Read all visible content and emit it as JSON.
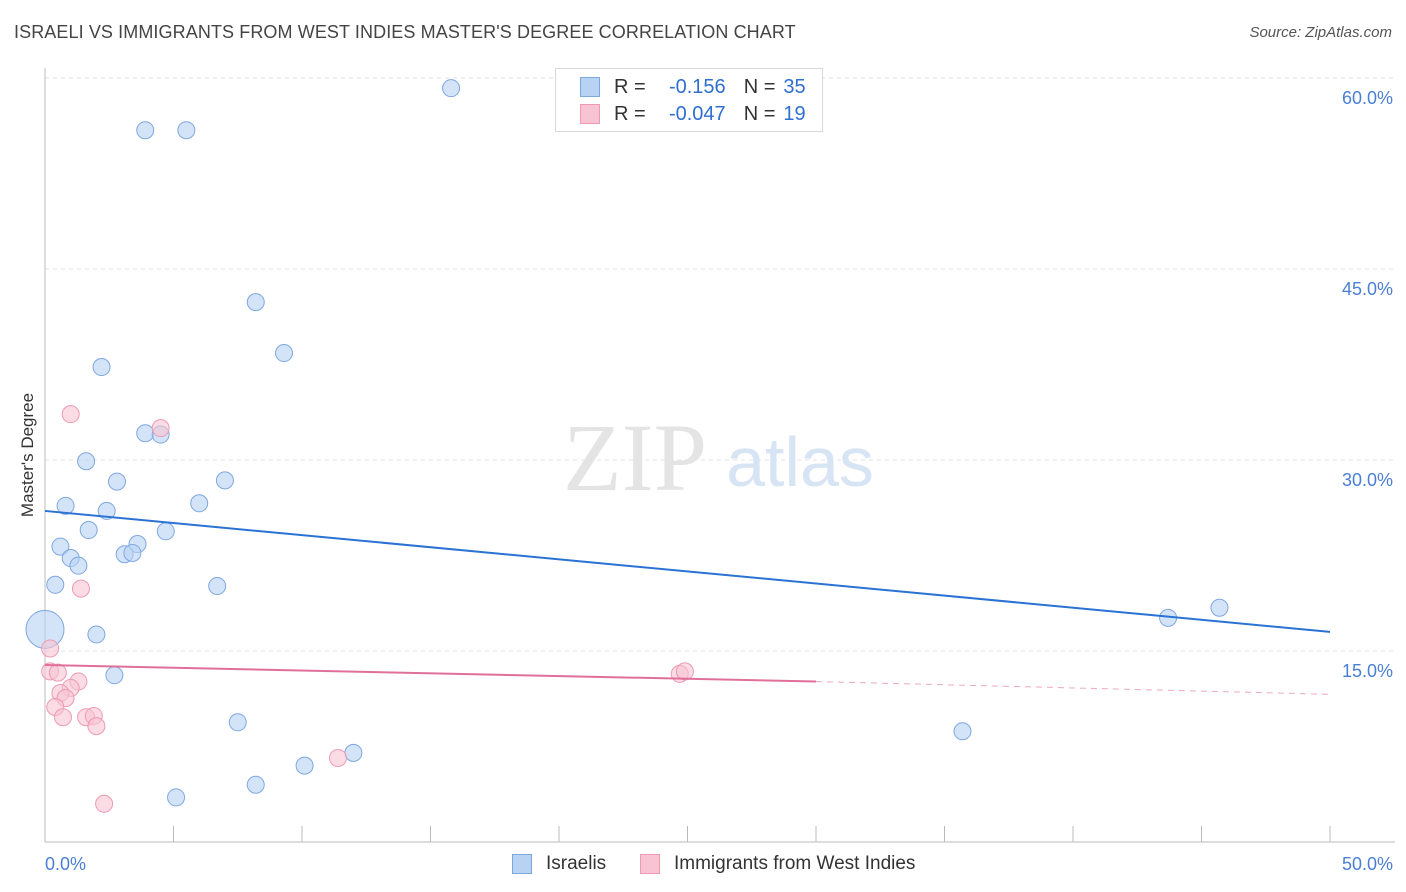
{
  "header": {
    "title": "ISRAELI VS IMMIGRANTS FROM WEST INDIES MASTER'S DEGREE CORRELATION CHART",
    "source": "Source: ZipAtlas.com"
  },
  "watermark": {
    "zip": "ZIP",
    "atlas": "atlas"
  },
  "legend": {
    "rows": [
      {
        "r_label": "R =",
        "r_value": "-0.156",
        "n_label": "N =",
        "n_value": "35"
      },
      {
        "r_label": "R =",
        "r_value": "-0.047",
        "n_label": "N =",
        "n_value": "19"
      }
    ]
  },
  "bottom_legend": {
    "series1": "Israelis",
    "series2": "Immigrants from West Indies"
  },
  "colors": {
    "israelis_fill": "#b8d2f4",
    "israelis_stroke": "#7ea7e0",
    "israelis_line": "#2a72d4",
    "wi_fill": "#f8c4d4",
    "wi_stroke": "#ee9ab5",
    "wi_line": "#e0709a",
    "tick_text": "#4a7fd4",
    "grid": "#e2e2e2"
  },
  "chart_data": {
    "type": "scatter",
    "title": "ISRAELI VS IMMIGRANTS FROM WEST INDIES MASTER'S DEGREE CORRELATION CHART",
    "xlabel": "",
    "ylabel": "Master's Degree",
    "xlim": [
      0,
      50
    ],
    "ylim": [
      0,
      60
    ],
    "x_tick_labels": [
      "0.0%",
      "50.0%"
    ],
    "y_ticks": [
      {
        "value": 15,
        "label": "15.0%"
      },
      {
        "value": 30,
        "label": "30.0%"
      },
      {
        "value": 45,
        "label": "45.0%"
      },
      {
        "value": 60,
        "label": "60.0%"
      }
    ],
    "series": [
      {
        "name": "Israelis",
        "r": -0.156,
        "n": 35,
        "trend": {
          "x0": 0,
          "y0": 26.0,
          "x1": 50,
          "y1": 16.5
        },
        "points": [
          {
            "x": 15.8,
            "y": 59.2
          },
          {
            "x": 3.9,
            "y": 55.9
          },
          {
            "x": 5.5,
            "y": 55.9
          },
          {
            "x": 8.2,
            "y": 42.4
          },
          {
            "x": 9.3,
            "y": 38.4
          },
          {
            "x": 2.2,
            "y": 37.3
          },
          {
            "x": 3.9,
            "y": 32.1
          },
          {
            "x": 4.5,
            "y": 32.0
          },
          {
            "x": 1.6,
            "y": 29.9
          },
          {
            "x": 2.8,
            "y": 28.3
          },
          {
            "x": 7.0,
            "y": 28.4
          },
          {
            "x": 0.8,
            "y": 26.4
          },
          {
            "x": 6.0,
            "y": 26.6
          },
          {
            "x": 2.4,
            "y": 26.0
          },
          {
            "x": 1.7,
            "y": 24.5
          },
          {
            "x": 4.7,
            "y": 24.4
          },
          {
            "x": 0.6,
            "y": 23.2
          },
          {
            "x": 3.6,
            "y": 23.4
          },
          {
            "x": 3.1,
            "y": 22.6
          },
          {
            "x": 3.4,
            "y": 22.7
          },
          {
            "x": 1.0,
            "y": 22.3
          },
          {
            "x": 1.3,
            "y": 21.7
          },
          {
            "x": 0.4,
            "y": 20.2
          },
          {
            "x": 6.7,
            "y": 20.1
          },
          {
            "x": 0.0,
            "y": 16.7,
            "big": true
          },
          {
            "x": 2.0,
            "y": 16.3
          },
          {
            "x": 2.7,
            "y": 13.1
          },
          {
            "x": 7.5,
            "y": 9.4
          },
          {
            "x": 8.2,
            "y": 4.5
          },
          {
            "x": 10.1,
            "y": 6.0
          },
          {
            "x": 12.0,
            "y": 7.0
          },
          {
            "x": 5.1,
            "y": 3.5
          },
          {
            "x": 35.7,
            "y": 8.7
          },
          {
            "x": 43.7,
            "y": 17.6
          },
          {
            "x": 45.7,
            "y": 18.4
          }
        ]
      },
      {
        "name": "Immigrants from West Indies",
        "r": -0.047,
        "n": 19,
        "trend": {
          "x0": 0,
          "y0": 13.9,
          "x1": 30,
          "y1": 12.6,
          "dash_x1": 50,
          "dash_y1": 11.6
        },
        "points": [
          {
            "x": 1.0,
            "y": 33.6
          },
          {
            "x": 4.5,
            "y": 32.5
          },
          {
            "x": 1.4,
            "y": 19.9
          },
          {
            "x": 0.2,
            "y": 15.2
          },
          {
            "x": 0.2,
            "y": 13.4
          },
          {
            "x": 0.5,
            "y": 13.3
          },
          {
            "x": 1.3,
            "y": 12.6
          },
          {
            "x": 1.0,
            "y": 12.1
          },
          {
            "x": 0.6,
            "y": 11.7
          },
          {
            "x": 0.8,
            "y": 11.3
          },
          {
            "x": 0.4,
            "y": 10.6
          },
          {
            "x": 0.7,
            "y": 9.8
          },
          {
            "x": 1.6,
            "y": 9.8
          },
          {
            "x": 1.9,
            "y": 9.9
          },
          {
            "x": 2.0,
            "y": 9.1
          },
          {
            "x": 11.4,
            "y": 6.6
          },
          {
            "x": 2.3,
            "y": 3.0
          },
          {
            "x": 24.7,
            "y": 13.2
          },
          {
            "x": 24.9,
            "y": 13.4
          }
        ]
      }
    ]
  }
}
